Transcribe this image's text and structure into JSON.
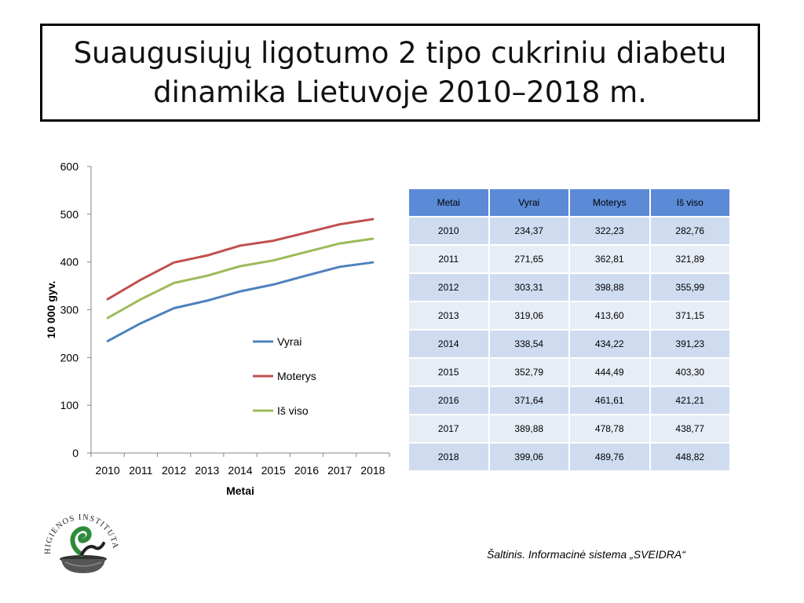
{
  "slide": {
    "title_line1": "Suaugusiųjų ligotumo 2 tipo cukriniu diabetu",
    "title_line2": "dinamika Lietuvoje 2010–2018 m.",
    "source": "Šaltinis. Informacinė sistema „SVEIDRA“",
    "logo_text": "HIGIENOS INSTITUTAS"
  },
  "chart_data": {
    "type": "line",
    "x": [
      2010,
      2011,
      2012,
      2013,
      2014,
      2015,
      2016,
      2017,
      2018
    ],
    "xlabel": "Metai",
    "ylabel": "10 000 gyv.",
    "ylim": [
      0,
      600
    ],
    "yticks": [
      0,
      100,
      200,
      300,
      400,
      500,
      600
    ],
    "grid": false,
    "legend_position": "right",
    "series": [
      {
        "name": "Vyrai",
        "color": "#4f81bd",
        "values": [
          234.37,
          271.65,
          303.31,
          319.06,
          338.54,
          352.79,
          371.64,
          389.88,
          399.06
        ]
      },
      {
        "name": "Moterys",
        "color": "#c0504d",
        "values": [
          322.23,
          362.81,
          398.88,
          413.6,
          434.22,
          444.49,
          461.61,
          478.78,
          489.76
        ]
      },
      {
        "name": "Iš viso",
        "color": "#9bbb59",
        "values": [
          282.76,
          321.89,
          355.99,
          371.15,
          391.23,
          403.3,
          421.21,
          438.77,
          448.82
        ]
      }
    ]
  },
  "table": {
    "headers": [
      "Metai",
      "Vyrai",
      "Moterys",
      "Iš viso"
    ],
    "rows": [
      [
        "2010",
        "234,37",
        "322,23",
        "282,76"
      ],
      [
        "2011",
        "271,65",
        "362,81",
        "321,89"
      ],
      [
        "2012",
        "303,31",
        "398,88",
        "355,99"
      ],
      [
        "2013",
        "319,06",
        "413,60",
        "371,15"
      ],
      [
        "2014",
        "338,54",
        "434,22",
        "391,23"
      ],
      [
        "2015",
        "352,79",
        "444,49",
        "403,30"
      ],
      [
        "2016",
        "371,64",
        "461,61",
        "421,21"
      ],
      [
        "2017",
        "389,88",
        "478,78",
        "438,77"
      ],
      [
        "2018",
        "399,06",
        "489,76",
        "448,82"
      ]
    ]
  }
}
